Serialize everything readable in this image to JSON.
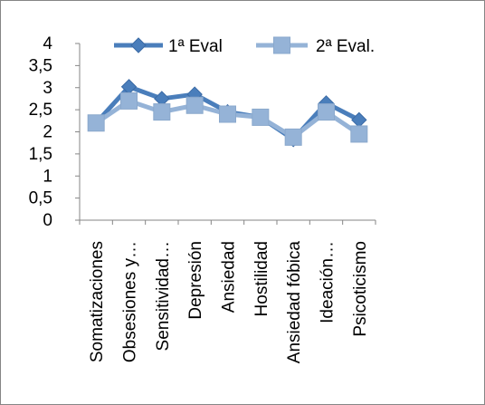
{
  "chart_data": {
    "type": "line",
    "title": "",
    "xlabel": "",
    "ylabel": "",
    "ylim": [
      0,
      4
    ],
    "y_ticks": [
      "0",
      "0,5",
      "1",
      "1,5",
      "2",
      "2,5",
      "3",
      "3,5",
      "4"
    ],
    "categories": [
      "Somatizaciones",
      "Obsesiones y…",
      "Sensitividad…",
      "Depresión",
      "Ansiedad",
      "Hostilidad",
      "Ansiedad fóbica",
      "Ideación…",
      "Psicoticismo"
    ],
    "legend_position": "top",
    "grid": false,
    "series": [
      {
        "name": "1ª Eval",
        "color": "#4a7ebb",
        "marker": "diamond",
        "values": [
          2.2,
          3.02,
          2.75,
          2.85,
          2.45,
          2.33,
          1.83,
          2.65,
          2.27
        ]
      },
      {
        "name": "2ª Eval.",
        "color": "#95b3d7",
        "marker": "square",
        "values": [
          2.2,
          2.7,
          2.45,
          2.6,
          2.4,
          2.33,
          1.88,
          2.45,
          1.95
        ]
      }
    ]
  }
}
